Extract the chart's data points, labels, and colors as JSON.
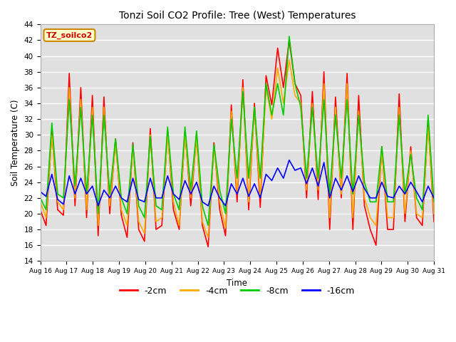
{
  "title": "Tonzi Soil CO2 Profile: Tree (West) Temperatures",
  "xlabel": "Time",
  "ylabel": "Soil Temperature (C)",
  "ylim": [
    14,
    44
  ],
  "yticks": [
    14,
    16,
    18,
    20,
    22,
    24,
    26,
    28,
    30,
    32,
    34,
    36,
    38,
    40,
    42,
    44
  ],
  "xtick_labels": [
    "Aug 16",
    "Aug 17",
    "Aug 18",
    "Aug 19",
    "Aug 20",
    "Aug 21",
    "Aug 22",
    "Aug 23",
    "Aug 24",
    "Aug 25",
    "Aug 26",
    "Aug 27",
    "Aug 28",
    "Aug 29",
    "Aug 30",
    "Aug 31"
  ],
  "legend_label": "TZ_soilco2",
  "series_labels": [
    "-2cm",
    "-4cm",
    "-8cm",
    "-16cm"
  ],
  "series_colors": [
    "#ff0000",
    "#ffaa00",
    "#00cc00",
    "#0000ff"
  ],
  "fig_bg_color": "#ffffff",
  "plot_bg_color": "#e0e0e0",
  "data_2cm": [
    20.5,
    18.5,
    30.5,
    20.5,
    19.8,
    37.8,
    21.0,
    36.0,
    19.5,
    35.0,
    17.2,
    34.8,
    20.0,
    29.5,
    19.8,
    17.0,
    29.0,
    18.0,
    16.5,
    30.8,
    18.0,
    18.5,
    30.5,
    20.5,
    18.0,
    30.5,
    21.0,
    30.0,
    18.5,
    15.8,
    29.0,
    20.5,
    17.2,
    33.8,
    21.5,
    37.0,
    20.5,
    34.0,
    20.8,
    37.5,
    33.8,
    41.0,
    36.0,
    42.0,
    36.5,
    35.0,
    22.0,
    35.5,
    21.8,
    38.0,
    18.0,
    34.8,
    22.0,
    37.8,
    18.0,
    35.0,
    21.0,
    18.0,
    16.0,
    28.5,
    18.0,
    18.0,
    35.2,
    19.0,
    28.5,
    19.5,
    18.5,
    32.0,
    19.0
  ],
  "data_4cm": [
    21.5,
    19.5,
    30.0,
    21.5,
    20.5,
    36.0,
    22.0,
    34.5,
    20.5,
    33.5,
    18.5,
    33.5,
    21.0,
    29.0,
    20.5,
    18.5,
    28.5,
    19.0,
    17.5,
    30.0,
    19.0,
    19.5,
    30.0,
    21.5,
    18.5,
    30.0,
    22.0,
    29.5,
    19.0,
    17.0,
    28.5,
    21.5,
    18.2,
    33.0,
    22.5,
    36.0,
    21.5,
    33.5,
    22.0,
    36.0,
    32.0,
    38.5,
    34.0,
    39.5,
    35.0,
    34.0,
    23.0,
    34.0,
    23.0,
    36.5,
    19.5,
    33.5,
    22.5,
    36.5,
    19.5,
    33.0,
    22.0,
    19.5,
    18.5,
    28.0,
    19.5,
    19.5,
    33.5,
    20.0,
    28.0,
    20.0,
    19.5,
    31.0,
    20.0
  ],
  "data_8cm": [
    22.0,
    20.5,
    31.5,
    22.5,
    22.0,
    34.5,
    23.5,
    33.5,
    22.5,
    32.5,
    20.0,
    32.5,
    22.5,
    29.5,
    22.0,
    20.0,
    28.8,
    21.0,
    19.5,
    29.8,
    21.0,
    20.5,
    31.0,
    22.5,
    20.5,
    31.0,
    23.0,
    30.5,
    21.0,
    18.5,
    28.8,
    23.0,
    20.0,
    32.0,
    24.5,
    35.5,
    24.5,
    33.5,
    24.5,
    36.5,
    32.5,
    36.5,
    32.5,
    42.5,
    36.5,
    33.5,
    24.5,
    33.5,
    24.5,
    34.5,
    22.5,
    32.5,
    24.5,
    34.5,
    22.5,
    32.5,
    24.0,
    21.5,
    21.5,
    28.5,
    21.5,
    21.5,
    32.5,
    22.5,
    27.5,
    22.0,
    20.5,
    32.5,
    21.5
  ],
  "data_16cm": [
    22.8,
    22.2,
    25.0,
    21.8,
    21.2,
    24.8,
    22.5,
    24.5,
    22.5,
    23.5,
    21.0,
    23.0,
    22.0,
    23.5,
    22.0,
    21.5,
    24.5,
    21.8,
    21.5,
    24.5,
    22.0,
    22.0,
    24.8,
    22.5,
    21.8,
    24.2,
    22.5,
    24.0,
    21.5,
    21.0,
    23.5,
    22.0,
    21.0,
    23.8,
    22.5,
    24.5,
    22.2,
    23.8,
    22.0,
    25.0,
    24.2,
    25.8,
    24.5,
    26.8,
    25.5,
    25.8,
    23.8,
    25.8,
    23.5,
    26.5,
    22.0,
    24.5,
    23.0,
    24.8,
    22.8,
    24.8,
    23.2,
    22.0,
    22.0,
    24.0,
    22.2,
    22.0,
    23.5,
    22.5,
    24.0,
    22.8,
    21.5,
    23.5,
    22.0
  ]
}
